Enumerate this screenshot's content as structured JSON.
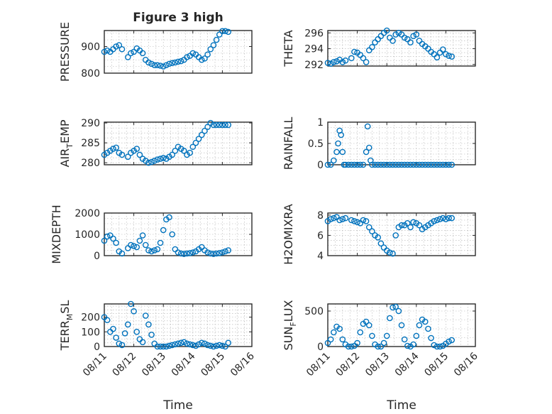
{
  "figure_title": "Figure 3 high",
  "series_color": "#0072bd",
  "chart_data": [
    {
      "id": "pressure",
      "type": "scatter",
      "marker": "circle",
      "grid": true,
      "title": "Figure 3 high",
      "ylabel": "PRESSURE",
      "ylabel_sub": "",
      "ylabel_tail": "",
      "xlim": [
        "08/11",
        "08/16"
      ],
      "ylim": [
        800,
        960
      ],
      "yticks": [
        800,
        900
      ],
      "ytick_labels": [
        "800",
        "900"
      ],
      "xticks": [
        "08/11",
        "08/12",
        "08/13",
        "08/14",
        "08/15",
        "08/16"
      ],
      "xtick_labels": [],
      "x": [
        0.0,
        0.1,
        0.2,
        0.3,
        0.4,
        0.5,
        0.6,
        0.8,
        0.9,
        1.0,
        1.1,
        1.2,
        1.3,
        1.4,
        1.5,
        1.6,
        1.7,
        1.8,
        1.9,
        2.0,
        2.1,
        2.2,
        2.3,
        2.4,
        2.5,
        2.6,
        2.7,
        2.8,
        2.9,
        3.0,
        3.1,
        3.2,
        3.3,
        3.4,
        3.5,
        3.6,
        3.7,
        3.8,
        3.9,
        4.0,
        4.1,
        4.2
      ],
      "y": [
        880,
        885,
        880,
        890,
        900,
        905,
        890,
        860,
        875,
        880,
        893,
        885,
        875,
        850,
        840,
        835,
        830,
        830,
        828,
        825,
        830,
        835,
        838,
        840,
        843,
        845,
        850,
        860,
        865,
        875,
        870,
        860,
        850,
        855,
        870,
        890,
        905,
        925,
        945,
        958,
        958,
        955
      ]
    },
    {
      "id": "theta",
      "type": "scatter",
      "marker": "circle",
      "grid": true,
      "ylabel": "THETA",
      "ylabel_sub": "",
      "ylabel_tail": "",
      "xlim": [
        "08/11",
        "08/16"
      ],
      "ylim": [
        291.8,
        296.3
      ],
      "yticks": [
        292,
        294,
        296
      ],
      "ytick_labels": [
        "292",
        "294",
        "296"
      ],
      "xticks": [
        "08/11",
        "08/12",
        "08/13",
        "08/14",
        "08/15",
        "08/16"
      ],
      "xtick_labels": [],
      "x": [
        0.0,
        0.1,
        0.2,
        0.3,
        0.4,
        0.5,
        0.6,
        0.8,
        0.9,
        1.0,
        1.1,
        1.2,
        1.3,
        1.4,
        1.5,
        1.6,
        1.7,
        1.8,
        1.9,
        2.0,
        2.1,
        2.2,
        2.3,
        2.4,
        2.5,
        2.6,
        2.7,
        2.8,
        2.9,
        3.0,
        3.1,
        3.2,
        3.3,
        3.4,
        3.5,
        3.6,
        3.7,
        3.8,
        3.9,
        4.0,
        4.1,
        4.2
      ],
      "y": [
        292.2,
        292.1,
        292.3,
        292.4,
        292.6,
        292.3,
        292.5,
        292.8,
        293.6,
        293.5,
        293.2,
        292.8,
        292.3,
        293.8,
        294.2,
        294.8,
        295.2,
        295.6,
        296.0,
        296.3,
        295.4,
        295.0,
        295.8,
        296.0,
        295.8,
        295.4,
        295.2,
        294.8,
        295.6,
        295.8,
        295.0,
        294.6,
        294.3,
        294.0,
        293.6,
        293.3,
        292.9,
        293.5,
        293.9,
        293.3,
        293.1,
        293.0
      ]
    },
    {
      "id": "air_temp",
      "type": "scatter",
      "marker": "circle",
      "grid": true,
      "ylabel": "AIR",
      "ylabel_sub": "T",
      "ylabel_tail": "EMP",
      "xlim": [
        "08/11",
        "08/16"
      ],
      "ylim": [
        279.5,
        290.2
      ],
      "yticks": [
        280,
        285,
        290
      ],
      "ytick_labels": [
        "280",
        "285",
        "290"
      ],
      "xticks": [
        "08/11",
        "08/12",
        "08/13",
        "08/14",
        "08/15",
        "08/16"
      ],
      "xtick_labels": [],
      "x": [
        0.0,
        0.1,
        0.2,
        0.3,
        0.4,
        0.5,
        0.6,
        0.8,
        0.9,
        1.0,
        1.1,
        1.2,
        1.3,
        1.4,
        1.5,
        1.6,
        1.7,
        1.8,
        1.9,
        2.0,
        2.1,
        2.2,
        2.3,
        2.4,
        2.5,
        2.6,
        2.7,
        2.8,
        2.9,
        3.0,
        3.1,
        3.2,
        3.3,
        3.4,
        3.5,
        3.6,
        3.7,
        3.8,
        3.9,
        4.0,
        4.1,
        4.2
      ],
      "y": [
        282.0,
        282.5,
        283.0,
        283.5,
        283.8,
        282.5,
        282.0,
        281.5,
        282.5,
        283.0,
        283.5,
        282.0,
        281.0,
        280.5,
        280.0,
        280.2,
        280.5,
        280.8,
        281.0,
        281.2,
        281.0,
        281.5,
        282.0,
        283.0,
        284.0,
        283.5,
        283.0,
        282.0,
        282.5,
        284.0,
        285.0,
        286.0,
        287.0,
        288.0,
        289.0,
        290.0,
        289.5,
        289.5,
        289.5,
        289.5,
        289.5,
        289.5
      ]
    },
    {
      "id": "rainfall",
      "type": "scatter",
      "marker": "circle",
      "grid": true,
      "ylabel": "RAINFALL",
      "ylabel_sub": "",
      "ylabel_tail": "",
      "xlim": [
        "08/11",
        "08/16"
      ],
      "ylim": [
        0,
        1
      ],
      "yticks": [
        0,
        0.5,
        1
      ],
      "ytick_labels": [
        "0",
        "0.5",
        "1"
      ],
      "xticks": [
        "08/11",
        "08/12",
        "08/13",
        "08/14",
        "08/15",
        "08/16"
      ],
      "xtick_labels": [],
      "x": [
        0.0,
        0.1,
        0.2,
        0.3,
        0.35,
        0.4,
        0.45,
        0.5,
        0.55,
        0.6,
        0.7,
        0.8,
        0.9,
        1.0,
        1.1,
        1.2,
        1.3,
        1.35,
        1.4,
        1.45,
        1.5,
        1.6,
        1.7,
        1.8,
        1.9,
        2.0,
        2.1,
        2.2,
        2.3,
        2.4,
        2.5,
        2.6,
        2.7,
        2.8,
        2.9,
        3.0,
        3.1,
        3.2,
        3.3,
        3.4,
        3.5,
        3.6,
        3.7,
        3.8,
        3.9,
        4.0,
        4.1,
        4.2
      ],
      "y": [
        0,
        0,
        0.1,
        0.3,
        0.5,
        0.8,
        0.7,
        0.3,
        0,
        0,
        0,
        0,
        0,
        0,
        0,
        0,
        0.3,
        0.9,
        0.4,
        0.1,
        0,
        0,
        0,
        0,
        0,
        0,
        0,
        0,
        0,
        0,
        0,
        0,
        0,
        0,
        0,
        0,
        0,
        0,
        0,
        0,
        0,
        0,
        0,
        0,
        0,
        0,
        0,
        0
      ]
    },
    {
      "id": "mixdepth",
      "type": "scatter",
      "marker": "circle",
      "grid": true,
      "ylabel": "MIXDEPTH",
      "ylabel_sub": "",
      "ylabel_tail": "",
      "xlim": [
        "08/11",
        "08/16"
      ],
      "ylim": [
        0,
        2000
      ],
      "yticks": [
        0,
        1000,
        2000
      ],
      "ytick_labels": [
        "0",
        "1000",
        "2000"
      ],
      "xticks": [
        "08/11",
        "08/12",
        "08/13",
        "08/14",
        "08/15",
        "08/16"
      ],
      "xtick_labels": [],
      "x": [
        0.0,
        0.1,
        0.2,
        0.3,
        0.4,
        0.5,
        0.6,
        0.8,
        0.9,
        1.0,
        1.1,
        1.2,
        1.3,
        1.4,
        1.5,
        1.6,
        1.7,
        1.8,
        1.9,
        2.0,
        2.1,
        2.2,
        2.3,
        2.4,
        2.5,
        2.6,
        2.7,
        2.8,
        2.9,
        3.0,
        3.1,
        3.2,
        3.3,
        3.4,
        3.5,
        3.6,
        3.7,
        3.8,
        3.9,
        4.0,
        4.1,
        4.2
      ],
      "y": [
        700,
        900,
        950,
        800,
        600,
        200,
        100,
        350,
        500,
        450,
        400,
        700,
        950,
        500,
        250,
        200,
        250,
        300,
        600,
        1200,
        1700,
        1800,
        1000,
        300,
        150,
        100,
        80,
        100,
        120,
        150,
        200,
        300,
        400,
        250,
        150,
        100,
        80,
        100,
        120,
        150,
        200,
        250
      ]
    },
    {
      "id": "h2omixra",
      "type": "scatter",
      "marker": "circle",
      "grid": true,
      "ylabel": "H2OMIXRA",
      "ylabel_sub": "",
      "ylabel_tail": "",
      "xlim": [
        "08/11",
        "08/16"
      ],
      "ylim": [
        4,
        8.2
      ],
      "yticks": [
        4,
        6,
        8
      ],
      "ytick_labels": [
        "4",
        "6",
        "8"
      ],
      "xticks": [
        "08/11",
        "08/12",
        "08/13",
        "08/14",
        "08/15",
        "08/16"
      ],
      "xtick_labels": [],
      "x": [
        0.0,
        0.1,
        0.2,
        0.3,
        0.4,
        0.5,
        0.6,
        0.8,
        0.9,
        1.0,
        1.1,
        1.2,
        1.3,
        1.4,
        1.5,
        1.6,
        1.7,
        1.8,
        1.9,
        2.0,
        2.1,
        2.2,
        2.3,
        2.4,
        2.5,
        2.6,
        2.7,
        2.8,
        2.9,
        3.0,
        3.1,
        3.2,
        3.3,
        3.4,
        3.5,
        3.6,
        3.7,
        3.8,
        3.9,
        4.0,
        4.1,
        4.2
      ],
      "y": [
        7.4,
        7.6,
        7.7,
        7.8,
        7.5,
        7.6,
        7.7,
        7.5,
        7.4,
        7.3,
        7.2,
        7.5,
        7.4,
        6.8,
        6.4,
        6.0,
        5.8,
        5.2,
        4.8,
        4.5,
        4.3,
        4.2,
        6.0,
        6.8,
        7.0,
        7.0,
        7.2,
        6.8,
        7.3,
        7.2,
        7.0,
        6.6,
        6.8,
        7.0,
        7.2,
        7.4,
        7.5,
        7.6,
        7.7,
        7.6,
        7.7,
        7.7
      ]
    },
    {
      "id": "terr_msl",
      "type": "scatter",
      "marker": "circle",
      "grid": true,
      "ylabel": "TERR",
      "ylabel_sub": "M",
      "ylabel_tail": "SL",
      "xlim": [
        "08/11",
        "08/16"
      ],
      "ylim": [
        0,
        290
      ],
      "yticks": [
        0,
        100,
        200
      ],
      "ytick_labels": [
        "0",
        "100",
        "200"
      ],
      "xticks": [
        "08/11",
        "08/12",
        "08/13",
        "08/14",
        "08/15",
        "08/16"
      ],
      "xtick_labels": [
        "08/11",
        "08/12",
        "08/13",
        "08/14",
        "08/15",
        "08/16"
      ],
      "xlabel": "Time",
      "x": [
        0.0,
        0.1,
        0.2,
        0.3,
        0.4,
        0.5,
        0.6,
        0.7,
        0.8,
        0.9,
        1.0,
        1.1,
        1.2,
        1.3,
        1.4,
        1.5,
        1.6,
        1.7,
        1.8,
        1.9,
        2.0,
        2.1,
        2.2,
        2.3,
        2.4,
        2.5,
        2.6,
        2.7,
        2.8,
        2.9,
        3.0,
        3.1,
        3.2,
        3.3,
        3.4,
        3.5,
        3.6,
        3.7,
        3.8,
        3.9,
        4.0,
        4.1,
        4.2
      ],
      "y": [
        200,
        180,
        100,
        120,
        60,
        20,
        10,
        90,
        150,
        290,
        240,
        100,
        50,
        30,
        210,
        150,
        80,
        20,
        0,
        0,
        0,
        0,
        5,
        10,
        15,
        20,
        25,
        30,
        20,
        15,
        10,
        5,
        15,
        25,
        20,
        10,
        5,
        0,
        5,
        10,
        5,
        0,
        25
      ]
    },
    {
      "id": "sun_flux",
      "type": "scatter",
      "marker": "circle",
      "grid": true,
      "ylabel": "SUN",
      "ylabel_sub": "F",
      "ylabel_tail": "LUX",
      "xlim": [
        "08/11",
        "08/16"
      ],
      "ylim": [
        0,
        600
      ],
      "yticks": [
        0,
        500
      ],
      "ytick_labels": [
        "0",
        "500"
      ],
      "xticks": [
        "08/11",
        "08/12",
        "08/13",
        "08/14",
        "08/15",
        "08/16"
      ],
      "xtick_labels": [
        "08/11",
        "08/12",
        "08/13",
        "08/14",
        "08/15",
        "08/16"
      ],
      "xlabel": "Time",
      "x": [
        0.0,
        0.1,
        0.2,
        0.3,
        0.4,
        0.5,
        0.6,
        0.7,
        0.8,
        0.9,
        1.0,
        1.1,
        1.2,
        1.3,
        1.4,
        1.5,
        1.6,
        1.7,
        1.8,
        1.9,
        2.0,
        2.1,
        2.2,
        2.3,
        2.4,
        2.5,
        2.6,
        2.7,
        2.8,
        2.9,
        3.0,
        3.1,
        3.2,
        3.3,
        3.4,
        3.5,
        3.6,
        3.7,
        3.8,
        3.9,
        4.0,
        4.1,
        4.2
      ],
      "y": [
        50,
        100,
        200,
        280,
        250,
        100,
        30,
        0,
        0,
        10,
        50,
        200,
        320,
        350,
        300,
        150,
        30,
        0,
        0,
        50,
        150,
        400,
        550,
        560,
        500,
        300,
        100,
        10,
        0,
        30,
        150,
        300,
        380,
        350,
        250,
        120,
        20,
        0,
        0,
        10,
        40,
        70,
        90
      ]
    }
  ]
}
